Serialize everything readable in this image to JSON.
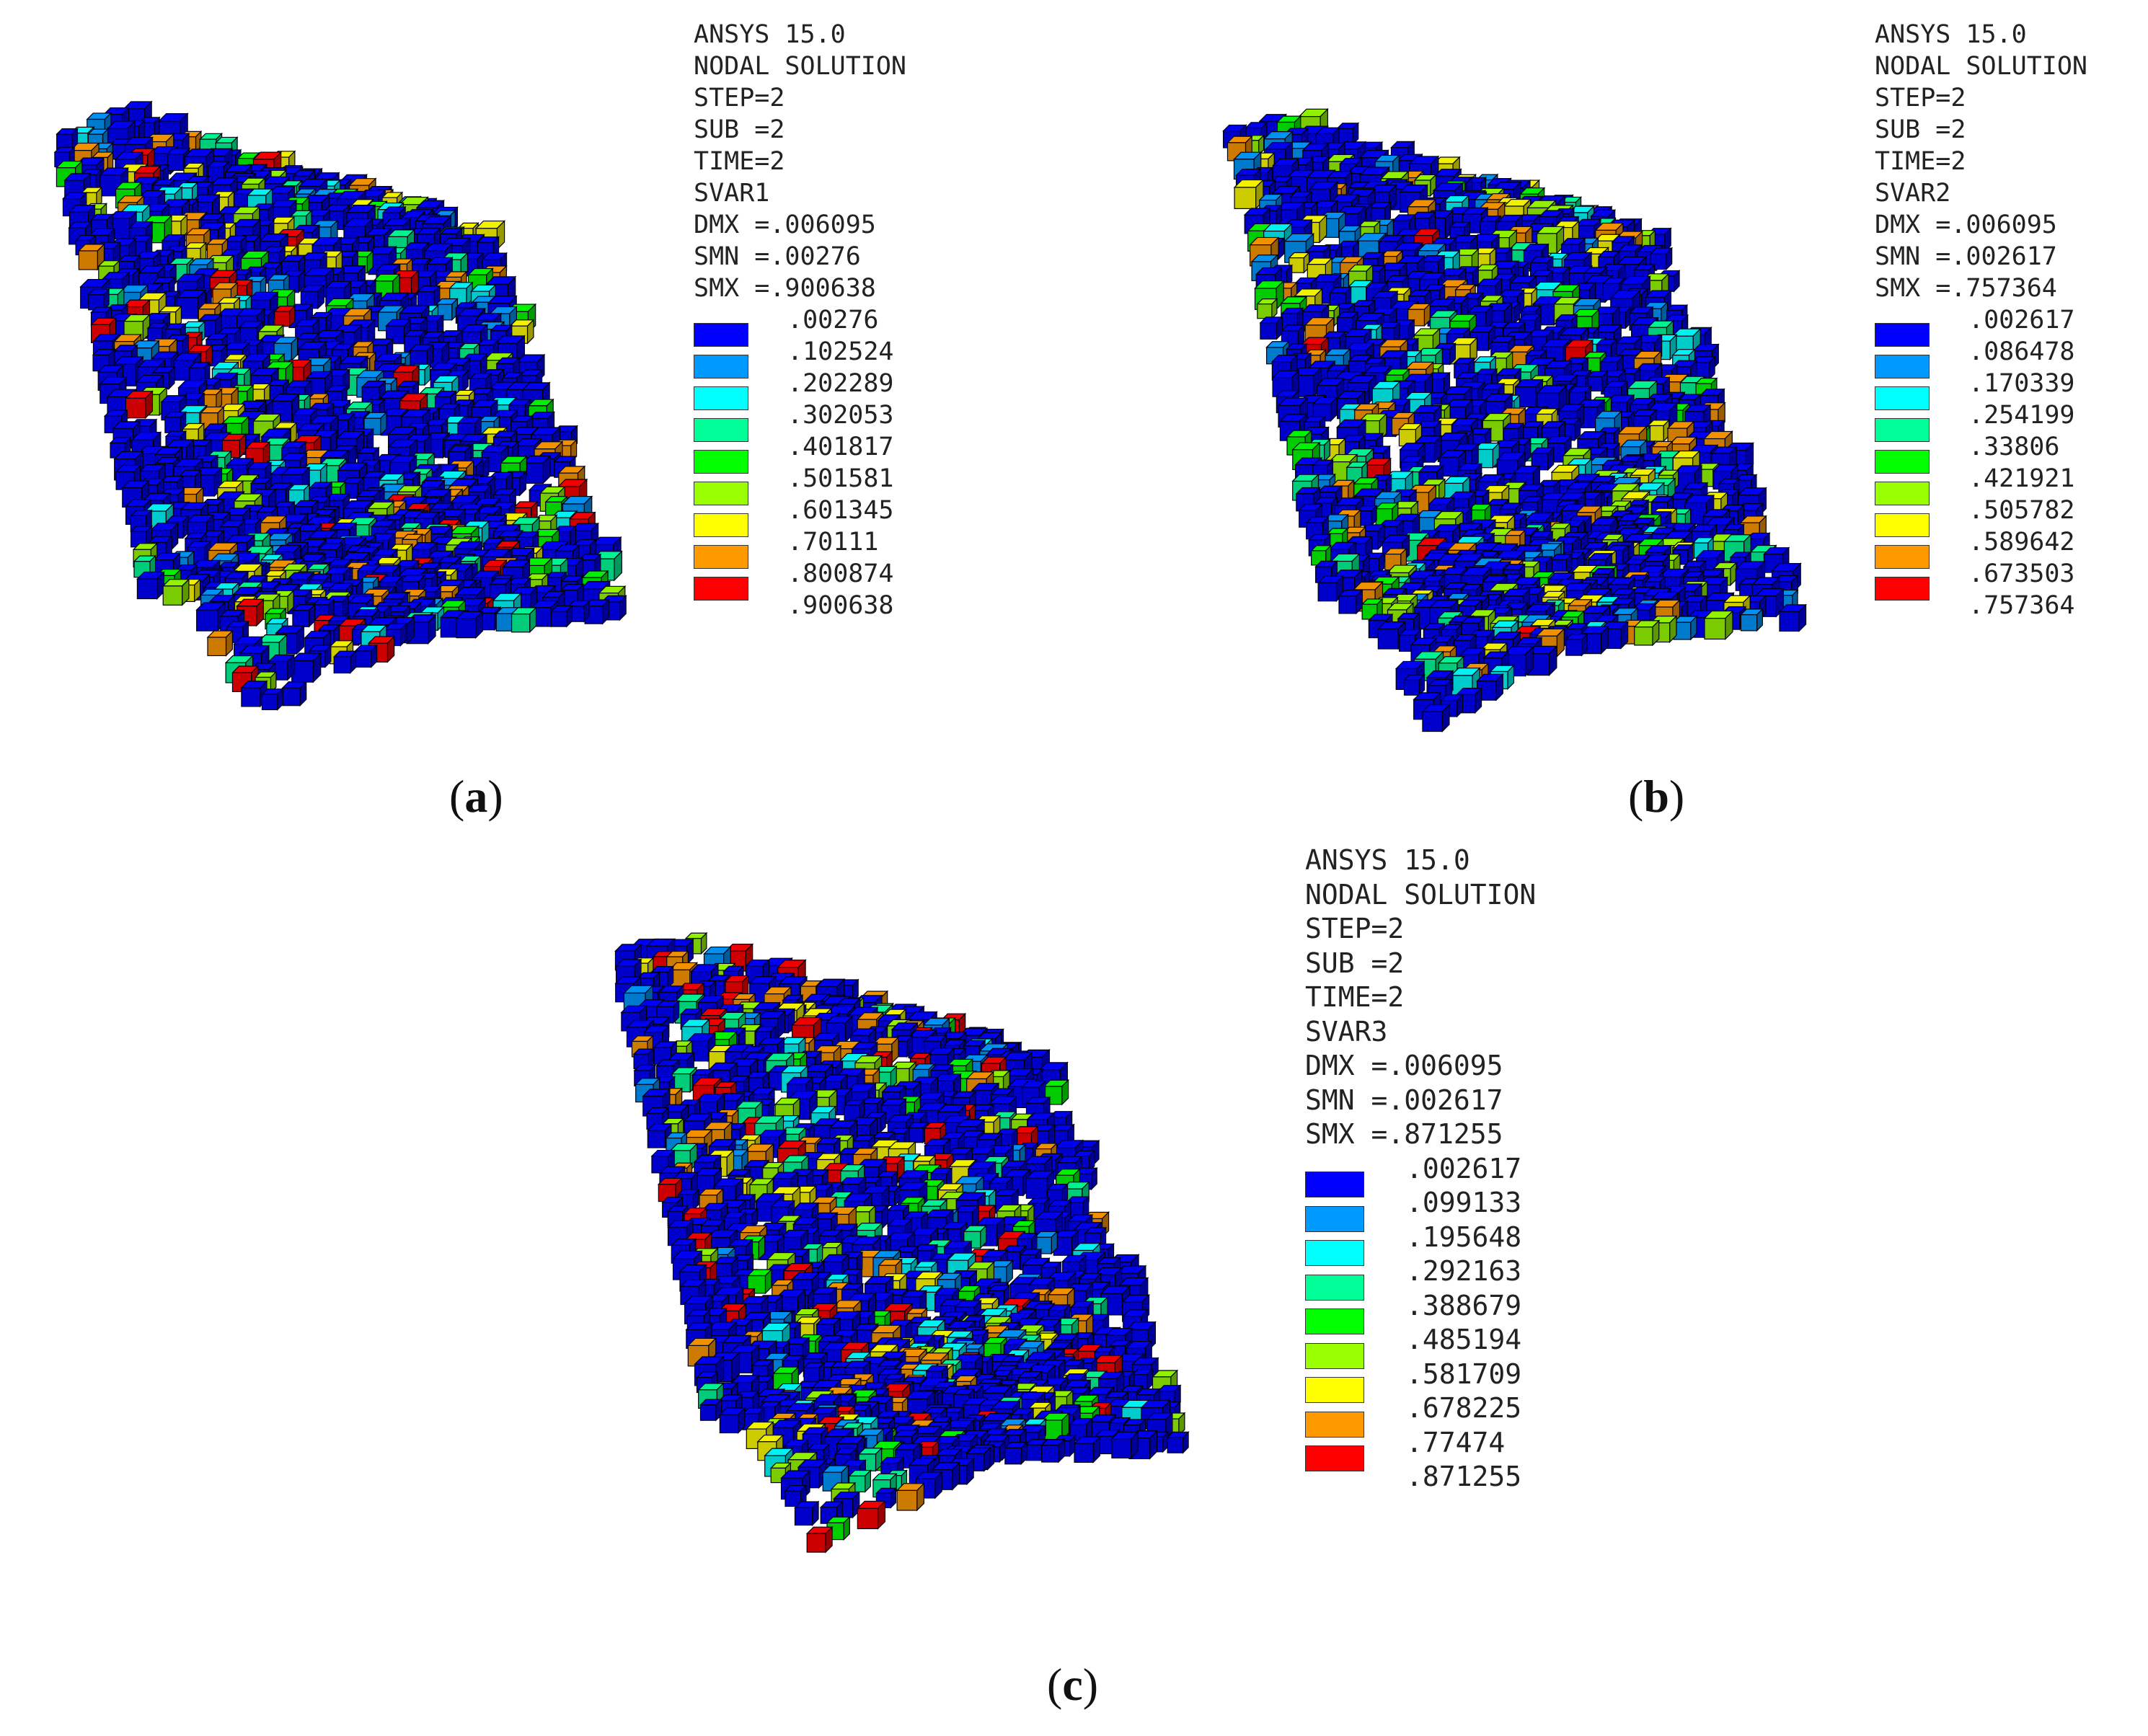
{
  "palette": [
    "#0000ff",
    "#0099ff",
    "#00ffff",
    "#00ff99",
    "#00ff00",
    "#99ff00",
    "#ffff00",
    "#ff9900",
    "#ff0000"
  ],
  "panels": [
    {
      "caption_letter": "a",
      "header": [
        "ANSYS 15.0",
        "NODAL SOLUTION",
        "STEP=2",
        "SUB =2",
        "TIME=2",
        "SVAR1",
        "DMX =.006095",
        "SMN =.00276",
        "SMX =.900638"
      ],
      "ticks": [
        ".00276",
        ".102524",
        ".202289",
        ".302053",
        ".401817",
        ".501581",
        ".601345",
        ".70111",
        ".800874",
        ".900638"
      ],
      "hot_weight": [
        0.12,
        0.1,
        0.1,
        0.1,
        0.1,
        0.1,
        0.1,
        0.14,
        0.14
      ]
    },
    {
      "caption_letter": "b",
      "header": [
        "ANSYS 15.0",
        "NODAL SOLUTION",
        "STEP=2",
        "SUB =2",
        "TIME=2",
        "SVAR2",
        "DMX =.006095",
        "SMN =.002617",
        "SMX =.757364"
      ],
      "ticks": [
        ".002617",
        ".086478",
        ".170339",
        ".254199",
        ".33806",
        ".421921",
        ".505782",
        ".589642",
        ".673503",
        ".757364"
      ],
      "hot_weight": [
        0.1,
        0.1,
        0.1,
        0.1,
        0.1,
        0.16,
        0.14,
        0.18,
        0.02
      ]
    },
    {
      "caption_letter": "c",
      "header": [
        "ANSYS 15.0",
        "NODAL SOLUTION",
        "STEP=2",
        "SUB =2",
        "TIME=2",
        "SVAR3",
        "DMX =.006095",
        "SMN =.002617",
        "SMX =.871255"
      ],
      "ticks": [
        ".002617",
        ".099133",
        ".195648",
        ".292163",
        ".388679",
        ".485194",
        ".581709",
        ".678225",
        ".77474",
        ".871255"
      ],
      "hot_weight": [
        0.12,
        0.1,
        0.1,
        0.1,
        0.1,
        0.1,
        0.1,
        0.14,
        0.14
      ]
    }
  ]
}
